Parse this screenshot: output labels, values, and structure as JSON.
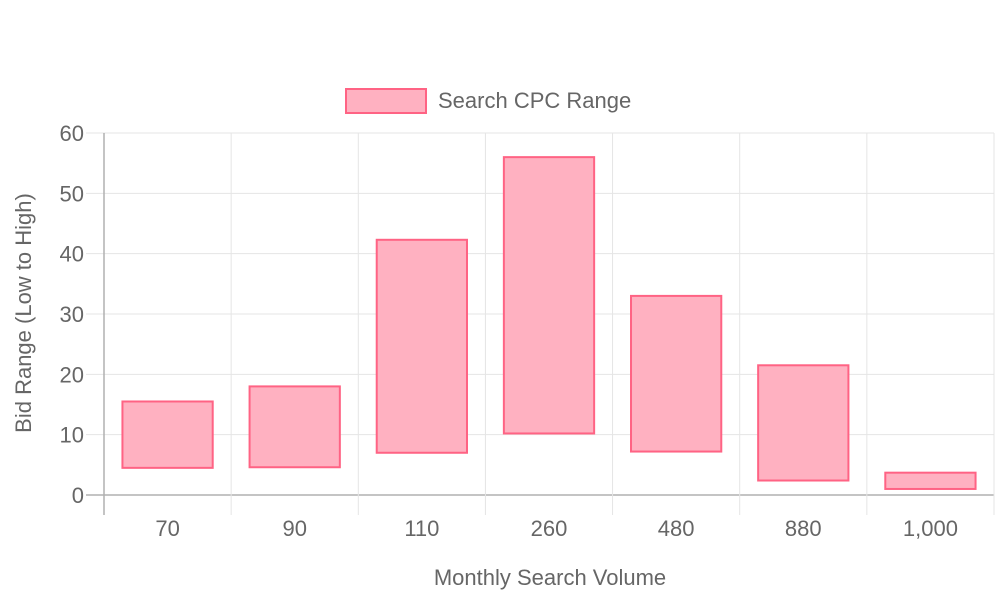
{
  "chart_data": {
    "type": "bar",
    "subtype": "floating-range",
    "categories": [
      "70",
      "90",
      "110",
      "260",
      "480",
      "880",
      "1,000"
    ],
    "series": [
      {
        "name": "Search CPC Range",
        "ranges": [
          [
            4.5,
            15.5
          ],
          [
            4.6,
            18.0
          ],
          [
            7.0,
            42.3
          ],
          [
            10.2,
            56.0
          ],
          [
            7.2,
            33.0
          ],
          [
            2.4,
            21.5
          ],
          [
            1.0,
            3.7
          ]
        ]
      }
    ],
    "xlabel": "Monthly Search Volume",
    "ylabel": "Bid Range (Low to High)",
    "ylim": [
      0,
      60
    ],
    "yticks": [
      "0",
      "10",
      "20",
      "30",
      "40",
      "50",
      "60"
    ],
    "grid": true,
    "legend": "top-center",
    "colors": {
      "bar_fill": "#ffb1c1",
      "bar_stroke": "#ff6384",
      "grid": "#e5e5e5",
      "axis": "#b0b0b0",
      "text": "#666666"
    }
  }
}
